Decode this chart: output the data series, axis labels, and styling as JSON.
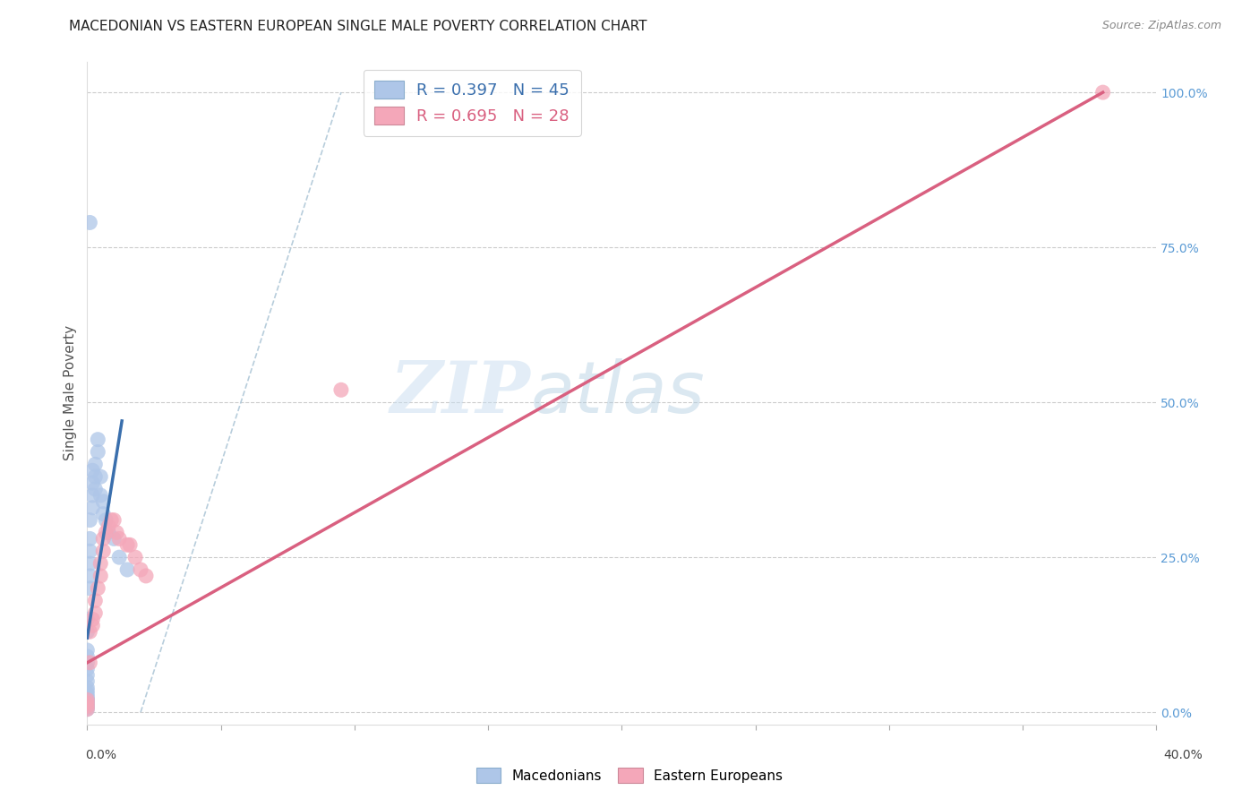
{
  "title": "MACEDONIAN VS EASTERN EUROPEAN SINGLE MALE POVERTY CORRELATION CHART",
  "source": "Source: ZipAtlas.com",
  "ylabel": "Single Male Poverty",
  "ytick_labels": [
    "0.0%",
    "25.0%",
    "50.0%",
    "75.0%",
    "100.0%"
  ],
  "ytick_vals": [
    0.0,
    0.25,
    0.5,
    0.75,
    1.0
  ],
  "xtick_labels": [
    "0.0%",
    "",
    "",
    "",
    "",
    "",
    "",
    "",
    "40.0%"
  ],
  "legend_mac_r": 0.397,
  "legend_mac_n": 45,
  "legend_ee_r": 0.695,
  "legend_ee_n": 28,
  "mac_color": "#aec6e8",
  "ee_color": "#f4a7b9",
  "mac_line_color": "#3a6fad",
  "ee_line_color": "#d96080",
  "diagonal_color": "#b0c8d8",
  "mac_points_x": [
    0.0,
    0.0,
    0.0,
    0.0,
    0.0,
    0.0,
    0.0,
    0.0,
    0.0,
    0.0,
    0.0,
    0.0,
    0.0,
    0.0,
    0.0,
    0.0,
    0.0,
    0.0,
    0.0,
    0.0,
    0.001,
    0.001,
    0.001,
    0.001,
    0.001,
    0.001,
    0.002,
    0.002,
    0.002,
    0.002,
    0.003,
    0.003,
    0.003,
    0.004,
    0.004,
    0.005,
    0.005,
    0.006,
    0.006,
    0.007,
    0.008,
    0.01,
    0.012,
    0.015,
    0.001
  ],
  "mac_points_y": [
    0.005,
    0.008,
    0.01,
    0.012,
    0.015,
    0.018,
    0.02,
    0.022,
    0.025,
    0.03,
    0.035,
    0.04,
    0.05,
    0.06,
    0.07,
    0.08,
    0.09,
    0.1,
    0.13,
    0.15,
    0.2,
    0.22,
    0.24,
    0.26,
    0.28,
    0.31,
    0.33,
    0.35,
    0.37,
    0.39,
    0.4,
    0.38,
    0.36,
    0.42,
    0.44,
    0.38,
    0.35,
    0.34,
    0.32,
    0.31,
    0.29,
    0.28,
    0.25,
    0.23,
    0.79
  ],
  "ee_points_x": [
    0.0,
    0.0,
    0.0,
    0.0,
    0.001,
    0.001,
    0.002,
    0.002,
    0.003,
    0.003,
    0.004,
    0.005,
    0.005,
    0.006,
    0.006,
    0.007,
    0.008,
    0.009,
    0.01,
    0.011,
    0.012,
    0.015,
    0.016,
    0.018,
    0.02,
    0.022,
    0.095,
    0.38
  ],
  "ee_points_y": [
    0.005,
    0.01,
    0.015,
    0.02,
    0.08,
    0.13,
    0.14,
    0.15,
    0.16,
    0.18,
    0.2,
    0.22,
    0.24,
    0.26,
    0.28,
    0.29,
    0.3,
    0.31,
    0.31,
    0.29,
    0.28,
    0.27,
    0.27,
    0.25,
    0.23,
    0.22,
    0.52,
    1.0
  ],
  "xlim": [
    0.0,
    0.4
  ],
  "ylim": [
    -0.02,
    1.05
  ],
  "ytick_color": "#5b9bd5",
  "ytick_fontsize": 10,
  "title_fontsize": 11,
  "source_fontsize": 9
}
